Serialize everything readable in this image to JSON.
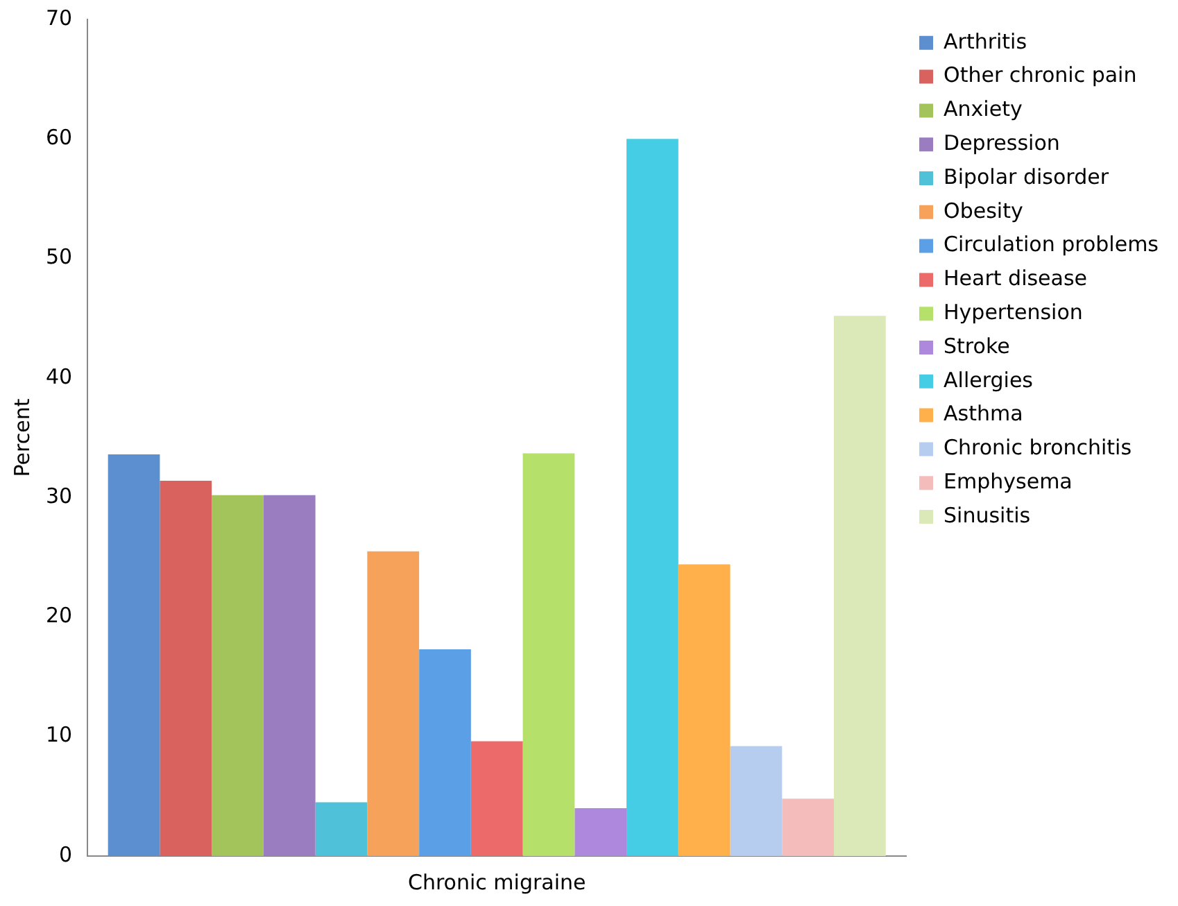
{
  "chart_data": {
    "type": "bar",
    "categories": [
      "Chronic migraine"
    ],
    "ylabel": "Percent",
    "ylim": [
      0,
      70
    ],
    "yticks": [
      0,
      10,
      20,
      30,
      40,
      50,
      60,
      70
    ],
    "grid": false,
    "legend": "right",
    "series": [
      {
        "name": "Arthritis",
        "color": "#5b8fd0",
        "values": [
          33.6
        ]
      },
      {
        "name": "Other chronic pain",
        "color": "#d9625e",
        "values": [
          31.4
        ]
      },
      {
        "name": "Anxiety",
        "color": "#a3c45a",
        "values": [
          30.2
        ]
      },
      {
        "name": "Depression",
        "color": "#9a7cc0",
        "values": [
          30.2
        ]
      },
      {
        "name": "Bipolar disorder",
        "color": "#4fc1d8",
        "values": [
          4.5
        ]
      },
      {
        "name": "Obesity",
        "color": "#f6a25a",
        "values": [
          25.5
        ]
      },
      {
        "name": "Circulation problems",
        "color": "#5b9fe6",
        "values": [
          17.3
        ]
      },
      {
        "name": "Heart disease",
        "color": "#ec6a6a",
        "values": [
          9.6
        ]
      },
      {
        "name": "Hypertension",
        "color": "#b5e06a",
        "values": [
          33.7
        ]
      },
      {
        "name": "Stroke",
        "color": "#ae88dd",
        "values": [
          4.0
        ]
      },
      {
        "name": "Allergies",
        "color": "#45cde6",
        "values": [
          60.0
        ]
      },
      {
        "name": "Asthma",
        "color": "#ffb04a",
        "values": [
          24.4
        ]
      },
      {
        "name": "Chronic bronchitis",
        "color": "#b7cdf0",
        "values": [
          9.2
        ]
      },
      {
        "name": "Emphysema",
        "color": "#f5bcbc",
        "values": [
          4.8
        ]
      },
      {
        "name": "Sinusitis",
        "color": "#dbe8b8",
        "values": [
          45.2
        ]
      }
    ]
  }
}
